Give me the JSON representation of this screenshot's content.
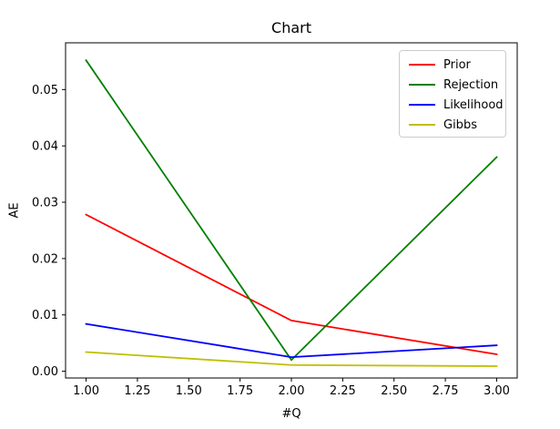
{
  "chart_data": {
    "type": "line",
    "title": "Chart",
    "xlabel": "#Q",
    "ylabel": "AE",
    "x": [
      1,
      2,
      3
    ],
    "series": [
      {
        "name": "Prior",
        "color": "#ff0000",
        "values": [
          0.0278,
          0.009,
          0.003
        ]
      },
      {
        "name": "Rejection",
        "color": "#008000",
        "values": [
          0.0552,
          0.002,
          0.038
        ]
      },
      {
        "name": "Likelihood",
        "color": "#0000ff",
        "values": [
          0.0084,
          0.0025,
          0.0046
        ]
      },
      {
        "name": "Gibbs",
        "color": "#bfbf00",
        "values": [
          0.0034,
          0.0011,
          0.0009
        ]
      }
    ],
    "xlim": [
      0.9,
      3.1
    ],
    "ylim": [
      -0.0012,
      0.0583
    ],
    "xticks": [
      {
        "v": 1.0,
        "label": "1.00"
      },
      {
        "v": 1.25,
        "label": "1.25"
      },
      {
        "v": 1.5,
        "label": "1.50"
      },
      {
        "v": 1.75,
        "label": "1.75"
      },
      {
        "v": 2.0,
        "label": "2.00"
      },
      {
        "v": 2.25,
        "label": "2.25"
      },
      {
        "v": 2.5,
        "label": "2.50"
      },
      {
        "v": 2.75,
        "label": "2.75"
      },
      {
        "v": 3.0,
        "label": "3.00"
      }
    ],
    "yticks": [
      {
        "v": 0.0,
        "label": "0.00"
      },
      {
        "v": 0.01,
        "label": "0.01"
      },
      {
        "v": 0.02,
        "label": "0.02"
      },
      {
        "v": 0.03,
        "label": "0.03"
      },
      {
        "v": 0.04,
        "label": "0.04"
      },
      {
        "v": 0.05,
        "label": "0.05"
      }
    ],
    "legend": {
      "position": "upper right",
      "entries": [
        "Prior",
        "Rejection",
        "Likelihood",
        "Gibbs"
      ]
    },
    "grid": false
  }
}
